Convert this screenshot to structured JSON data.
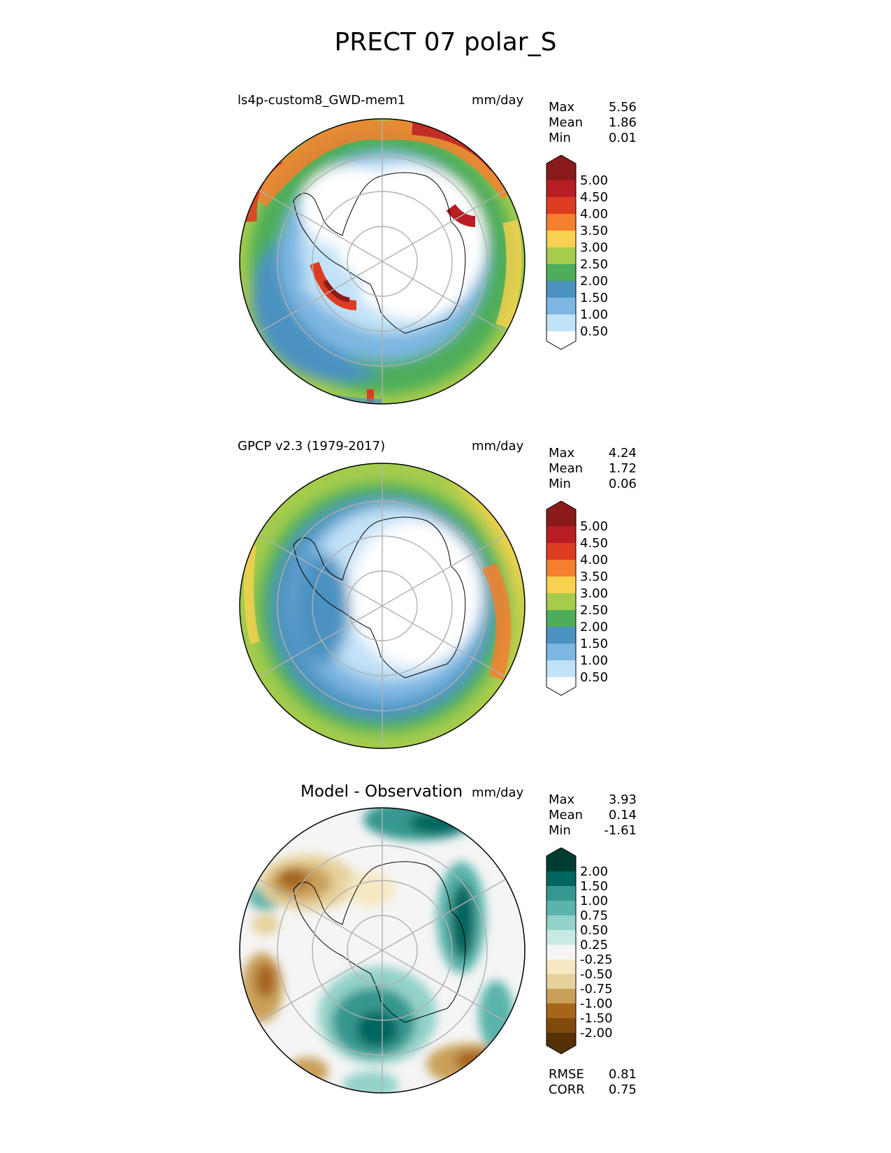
{
  "figure": {
    "title": "PRECT 07 polar_S"
  },
  "panels": [
    {
      "left_title": "ls4p-custom8_GWD-mem1",
      "right_title": "mm/day",
      "stats": [
        {
          "label": "Max",
          "value": "5.56"
        },
        {
          "label": "Mean",
          "value": "1.86"
        },
        {
          "label": "Min",
          "value": "0.01"
        }
      ],
      "colorbar": {
        "labels": [
          "5.00",
          "4.50",
          "4.00",
          "3.50",
          "3.00",
          "2.50",
          "2.00",
          "1.50",
          "1.00",
          "0.50"
        ],
        "colors": [
          "#8b1a1a",
          "#b81d24",
          "#de3c22",
          "#f47f2f",
          "#f7d14f",
          "#a5cc4c",
          "#4ead5a",
          "#4b92c1",
          "#7db6e1",
          "#c2e2f7",
          "#ffffff"
        ]
      }
    },
    {
      "left_title": "GPCP v2.3 (1979-2017)",
      "right_title": "mm/day",
      "stats": [
        {
          "label": "Max",
          "value": "4.24"
        },
        {
          "label": "Mean",
          "value": "1.72"
        },
        {
          "label": "Min",
          "value": "0.06"
        }
      ],
      "colorbar": {
        "labels": [
          "5.00",
          "4.50",
          "4.00",
          "3.50",
          "3.00",
          "2.50",
          "2.00",
          "1.50",
          "1.00",
          "0.50"
        ],
        "colors": [
          "#8b1a1a",
          "#b81d24",
          "#de3c22",
          "#f47f2f",
          "#f7d14f",
          "#a5cc4c",
          "#4ead5a",
          "#4b92c1",
          "#7db6e1",
          "#c2e2f7",
          "#ffffff"
        ]
      }
    },
    {
      "center_title": "Model - Observation",
      "right_title": "mm/day",
      "stats": [
        {
          "label": "Max",
          "value": "3.93"
        },
        {
          "label": "Mean",
          "value": "0.14"
        },
        {
          "label": "Min",
          "value": "-1.61"
        }
      ],
      "extra_stats": [
        {
          "label": "RMSE",
          "value": "0.81"
        },
        {
          "label": "CORR",
          "value": "0.75"
        }
      ],
      "colorbar": {
        "labels": [
          "2.00",
          "1.50",
          "1.00",
          "0.75",
          "0.50",
          "0.25",
          "-0.25",
          "-0.50",
          "-0.75",
          "-1.00",
          "-1.50",
          "-2.00"
        ],
        "colors": [
          "#003c30",
          "#01665e",
          "#35978f",
          "#5ab4ac",
          "#93d2c8",
          "#c7eae5",
          "#f5f5f5",
          "#f6e8c3",
          "#e6d19b",
          "#c9a05a",
          "#a6651a",
          "#804a0c",
          "#543005"
        ]
      }
    }
  ],
  "chart_data": [
    {
      "type": "heatmap",
      "projection": "south-polar-stereographic",
      "title": "ls4p-custom8_GWD-mem1",
      "units": "mm/day",
      "levels": [
        0.5,
        1.0,
        1.5,
        2.0,
        2.5,
        3.0,
        3.5,
        4.0,
        4.5,
        5.0
      ],
      "stats": {
        "max": 5.56,
        "mean": 1.86,
        "min": 0.01
      },
      "grid": true
    },
    {
      "type": "heatmap",
      "projection": "south-polar-stereographic",
      "title": "GPCP v2.3 (1979-2017)",
      "units": "mm/day",
      "levels": [
        0.5,
        1.0,
        1.5,
        2.0,
        2.5,
        3.0,
        3.5,
        4.0,
        4.5,
        5.0
      ],
      "stats": {
        "max": 4.24,
        "mean": 1.72,
        "min": 0.06
      },
      "grid": true
    },
    {
      "type": "heatmap",
      "projection": "south-polar-stereographic",
      "title": "Model - Observation",
      "units": "mm/day",
      "levels": [
        -2.0,
        -1.5,
        -1.0,
        -0.75,
        -0.5,
        -0.25,
        0.25,
        0.5,
        0.75,
        1.0,
        1.5,
        2.0
      ],
      "stats": {
        "max": 3.93,
        "mean": 0.14,
        "min": -1.61,
        "rmse": 0.81,
        "corr": 0.75
      },
      "grid": true
    }
  ]
}
